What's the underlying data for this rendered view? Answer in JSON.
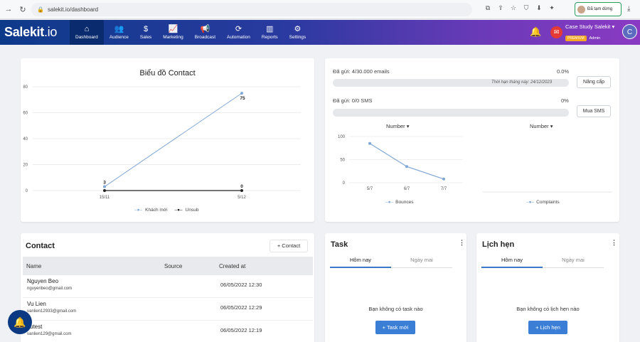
{
  "browser": {
    "url": "salekit.io/dashboard",
    "profile_label": "Đã tạm dừng"
  },
  "app": {
    "logo_main": "Salekit",
    "logo_suffix": ".io",
    "nav": [
      {
        "label": "Dashboard",
        "icon": "home-icon",
        "glyph": "⌂"
      },
      {
        "label": "Audience",
        "icon": "users-icon",
        "glyph": "👥"
      },
      {
        "label": "Sales",
        "icon": "dollar-icon",
        "glyph": "$"
      },
      {
        "label": "Marketing",
        "icon": "chart-line-icon",
        "glyph": "📈"
      },
      {
        "label": "Broadcast",
        "icon": "megaphone-icon",
        "glyph": "📢"
      },
      {
        "label": "Automation",
        "icon": "refresh-icon",
        "glyph": "⟳"
      },
      {
        "label": "Reports",
        "icon": "bar-chart-icon",
        "glyph": "▥"
      },
      {
        "label": "Settings",
        "icon": "gear-icon",
        "glyph": "⚙"
      }
    ],
    "user": {
      "name": "Case Study Salekit",
      "badge": "PREMIUM",
      "role": "Admin",
      "avatar_letter": "C"
    },
    "colors": {
      "nav_start": "#0e3a8a",
      "nav_end": "#8a3ac2",
      "accent": "#3a7fd5",
      "mail_badge": "#e53935"
    }
  },
  "contact_chart": {
    "title": "Biểu đồ Contact",
    "y_ticks": [
      "0",
      "20",
      "40",
      "60",
      "80"
    ],
    "legend": [
      "Khách mới",
      "Unsub"
    ]
  },
  "chart_data": [
    {
      "type": "line",
      "title": "Biểu đồ Contact",
      "x": [
        "15/11",
        "5/12"
      ],
      "ylim": [
        0,
        80
      ],
      "grid": true,
      "legend_position": "bottom",
      "series": [
        {
          "name": "Khách mới",
          "values": [
            3,
            75
          ],
          "labels": [
            "3",
            "75"
          ],
          "color": "#7fa7d6"
        },
        {
          "name": "Unsub",
          "values": [
            0,
            0
          ],
          "labels": [
            "",
            "0"
          ],
          "color": "#222222"
        }
      ]
    },
    {
      "type": "line",
      "x": [
        "5/7",
        "6/7",
        "7/7"
      ],
      "y_ticks": [
        "0",
        "50",
        "100"
      ],
      "ylim": [
        0,
        100
      ],
      "legend_position": "bottom",
      "series": [
        {
          "name": "Bounces",
          "values": [
            85,
            35,
            8
          ],
          "color": "#7fa7d6"
        }
      ]
    },
    {
      "type": "line",
      "series": [
        {
          "name": "Complaints",
          "values": [],
          "color": "#7fa7d6"
        }
      ]
    }
  ],
  "quota": {
    "email_label": "Đã gửi: 4/30.000 emails",
    "email_pct": "0.0%",
    "email_fill": 0.0,
    "expiry_note": "Thời hạn tháng này: 24/12/2023",
    "upgrade_btn": "Nâng cấp",
    "sms_label": "Đã gửi: 0/0 SMS",
    "sms_pct": "0%",
    "sms_fill": 0,
    "buy_sms_btn": "Mua SMS",
    "select_left": "Number",
    "select_right": "Number"
  },
  "contacts": {
    "title": "Contact",
    "add_btn": "+ Contact",
    "columns": [
      "Name",
      "Source",
      "Created at"
    ],
    "rows": [
      {
        "name": "Nguyen Beo",
        "email": "nguyenbeo@gmail.com",
        "source": "",
        "created": "06/05/2022 12:30"
      },
      {
        "name": "Vu Lien",
        "email": "vanlien12933@gmail.com",
        "source": "",
        "created": "06/05/2022 12:29"
      },
      {
        "name": "vutest",
        "email": "vanlien129@gmail.com",
        "source": "",
        "created": "06/05/2022 12:19"
      }
    ]
  },
  "task": {
    "title": "Task",
    "tab_today": "Hôm nay",
    "tab_tomorrow": "Ngày mai",
    "empty": "Bạn không có task nào",
    "btn": "+ Task mới"
  },
  "appointments": {
    "title": "Lịch hẹn",
    "tab_today": "Hôm nay",
    "tab_tomorrow": "Ngày mai",
    "empty": "Bạn không có lịch hẹn nào",
    "btn": "+ Lịch hẹn"
  }
}
